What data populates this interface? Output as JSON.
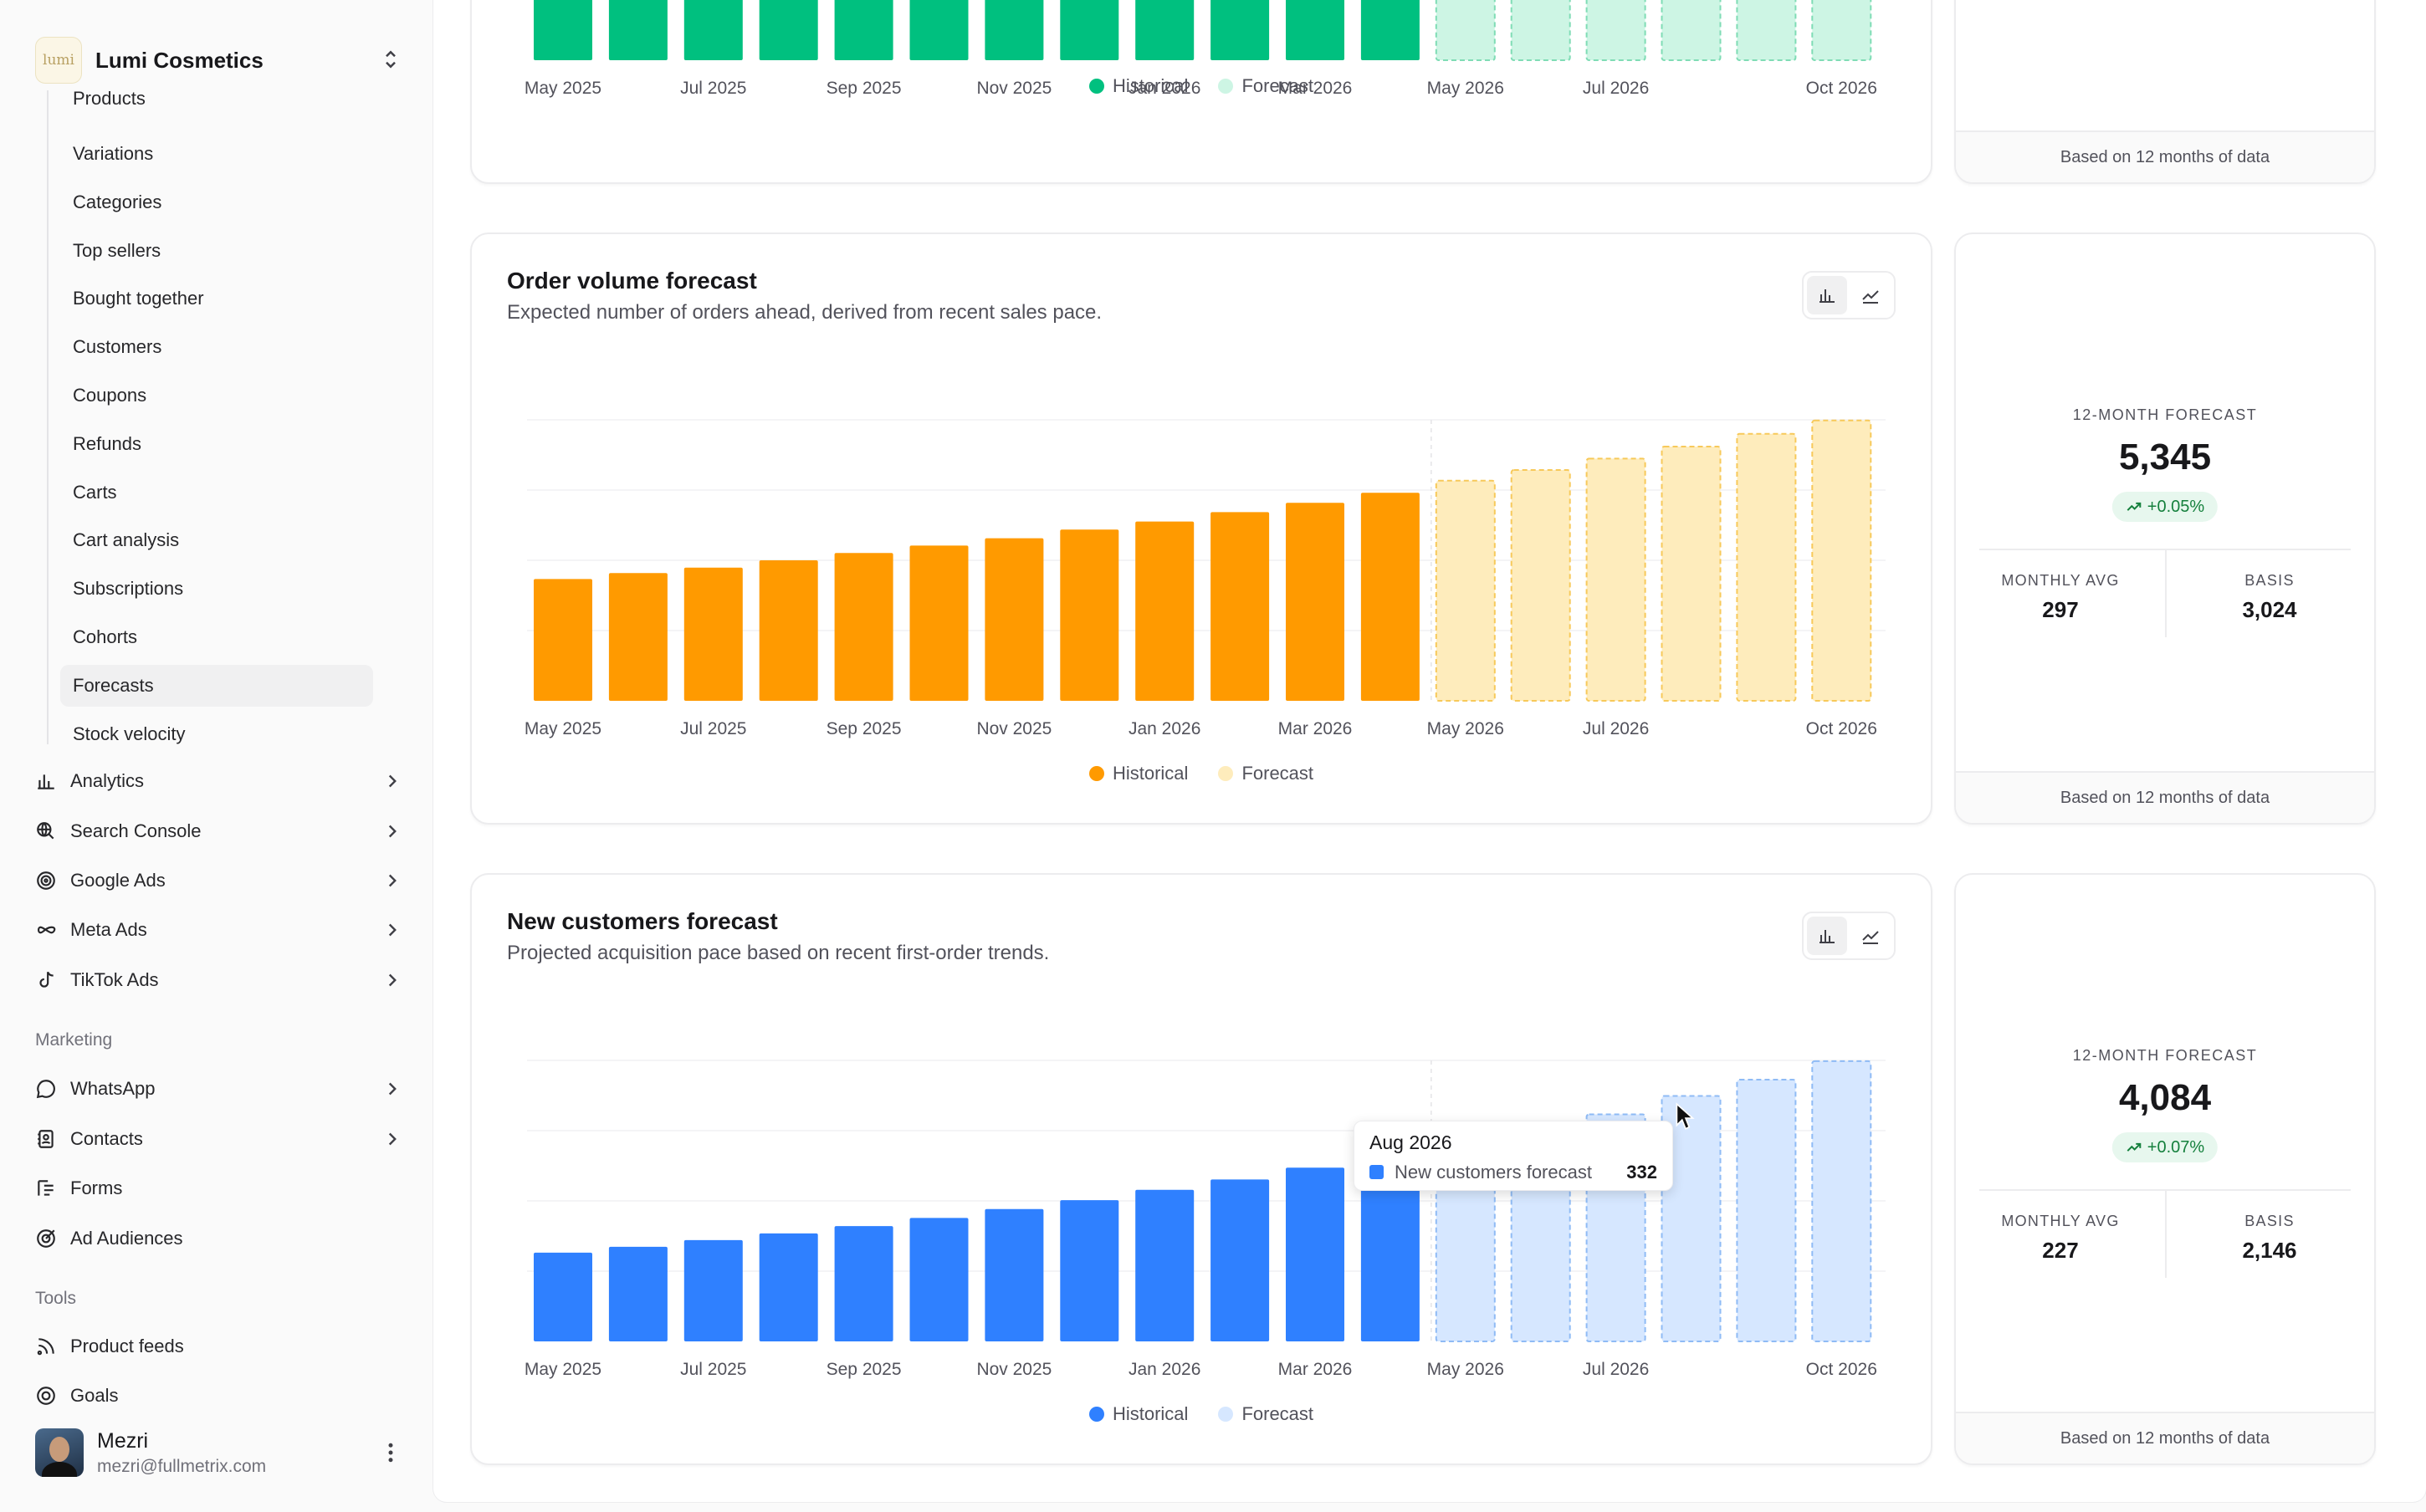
{
  "brand": {
    "name": "Lumi Cosmetics",
    "logo_text": "lumi"
  },
  "sidebar": {
    "sub_items": [
      {
        "label": "Products",
        "top": 0
      },
      {
        "label": "Variations"
      },
      {
        "label": "Categories"
      },
      {
        "label": "Top sellers"
      },
      {
        "label": "Bought together"
      },
      {
        "label": "Customers"
      },
      {
        "label": "Coupons"
      },
      {
        "label": "Refunds"
      },
      {
        "label": "Carts"
      },
      {
        "label": "Cart analysis"
      },
      {
        "label": "Subscriptions"
      },
      {
        "label": "Cohorts"
      },
      {
        "label": "Forecasts",
        "active": true
      },
      {
        "label": "Stock velocity"
      }
    ],
    "nav_items": [
      {
        "label": "Analytics",
        "icon": "bar-chart-icon",
        "chevron": true
      },
      {
        "label": "Search Console",
        "icon": "globe-search-icon",
        "chevron": true
      },
      {
        "label": "Google Ads",
        "icon": "target-icon",
        "chevron": true
      },
      {
        "label": "Meta Ads",
        "icon": "infinity-icon",
        "chevron": true
      },
      {
        "label": "TikTok Ads",
        "icon": "tiktok-icon",
        "chevron": true
      }
    ],
    "marketing_label": "Marketing",
    "marketing_items": [
      {
        "label": "WhatsApp",
        "icon": "chat-bubble-icon",
        "chevron": true
      },
      {
        "label": "Contacts",
        "icon": "contact-book-icon",
        "chevron": true
      },
      {
        "label": "Forms",
        "icon": "form-icon",
        "chevron": false
      },
      {
        "label": "Ad Audiences",
        "icon": "audience-target-icon",
        "chevron": false
      }
    ],
    "tools_label": "Tools",
    "tools_items": [
      {
        "label": "Product feeds",
        "icon": "rss-icon"
      },
      {
        "label": "Goals",
        "icon": "goal-icon"
      }
    ]
  },
  "user": {
    "name": "Mezri",
    "email": "mezri@fullmetrix.com"
  },
  "cards": [
    {
      "title": "",
      "subtitle": "",
      "stat": {
        "label": "",
        "value": "",
        "badge": "",
        "monthly_avg_label": "",
        "monthly_avg": "",
        "basis_label": "",
        "basis": "",
        "footer": "Based on 12 months of data"
      }
    },
    {
      "title": "Order volume forecast",
      "subtitle": "Expected number of orders ahead, derived from recent sales pace.",
      "stat": {
        "label": "12-MONTH FORECAST",
        "value": "5,345",
        "badge": "+0.05%",
        "monthly_avg_label": "MONTHLY AVG",
        "monthly_avg": "297",
        "basis_label": "BASIS",
        "basis": "3,024",
        "footer": "Based on 12 months of data"
      }
    },
    {
      "title": "New customers forecast",
      "subtitle": "Projected acquisition pace based on recent first-order trends.",
      "stat": {
        "label": "12-MONTH FORECAST",
        "value": "4,084",
        "badge": "+0.07%",
        "monthly_avg_label": "MONTHLY AVG",
        "monthly_avg": "227",
        "basis_label": "BASIS",
        "basis": "2,146",
        "footer": "Based on 12 months of data"
      }
    }
  ],
  "legend": {
    "historical": "Historical",
    "forecast": "Forecast"
  },
  "tooltip": {
    "title": "Aug 2026",
    "label": "New customers forecast",
    "value": "332"
  },
  "colors": {
    "green_hist": "#00c07f",
    "green_fc": "#cdf5e4",
    "green_fc_stroke": "#7fdcb5",
    "orange_hist": "#ff9a00",
    "orange_fc": "#feecbc",
    "orange_fc_stroke": "#f7c95a",
    "blue_hist": "#2f80ff",
    "blue_fc": "#d6e7ff",
    "blue_fc_stroke": "#8fbbf5",
    "badge_green": "#15803d"
  },
  "chart_data": [
    {
      "type": "bar",
      "title": "",
      "categories": [
        "May 2025",
        "Jun 2025",
        "Jul 2025",
        "Aug 2025",
        "Sep 2025",
        "Oct 2025",
        "Nov 2025",
        "Dec 2025",
        "Jan 2026",
        "Feb 2026",
        "Mar 2026",
        "Apr 2026",
        "May 2026",
        "Jun 2026",
        "Jul 2026",
        "Aug 2026",
        "Sep 2026",
        "Oct 2026"
      ],
      "tick_labels": [
        "May 2025",
        "Jul 2025",
        "Sep 2025",
        "Nov 2025",
        "Jan 2026",
        "Mar 2026",
        "May 2026",
        "Jul 2026",
        "Oct 2026"
      ],
      "series": [
        {
          "name": "Historical",
          "values": [
            1,
            1,
            1,
            1,
            1,
            1,
            1,
            1,
            1,
            1,
            1,
            1,
            null,
            null,
            null,
            null,
            null,
            null
          ]
        },
        {
          "name": "Forecast",
          "values": [
            null,
            null,
            null,
            null,
            null,
            null,
            null,
            null,
            null,
            null,
            null,
            null,
            1,
            1,
            1,
            1,
            1,
            1
          ]
        }
      ]
    },
    {
      "type": "bar",
      "title": "Order volume forecast",
      "categories": [
        "May 2025",
        "Jun 2025",
        "Jul 2025",
        "Aug 2025",
        "Sep 2025",
        "Oct 2025",
        "Nov 2025",
        "Dec 2025",
        "Jan 2026",
        "Feb 2026",
        "Mar 2026",
        "Apr 2026",
        "May 2026",
        "Jun 2026",
        "Jul 2026",
        "Aug 2026",
        "Sep 2026",
        "Oct 2026"
      ],
      "tick_labels": [
        "May 2025",
        "Jul 2025",
        "Sep 2025",
        "Nov 2025",
        "Jan 2026",
        "Mar 2026",
        "May 2026",
        "Jul 2026",
        "Oct 2026"
      ],
      "ylim": [
        0,
        420
      ],
      "series": [
        {
          "name": "Historical",
          "values": [
            182,
            191,
            199,
            210,
            221,
            232,
            243,
            256,
            268,
            282,
            296,
            311,
            null,
            null,
            null,
            null,
            null,
            null
          ]
        },
        {
          "name": "Forecast",
          "values": [
            null,
            null,
            null,
            null,
            null,
            null,
            null,
            null,
            null,
            null,
            null,
            null,
            329,
            345,
            362,
            380,
            399,
            419
          ]
        }
      ]
    },
    {
      "type": "bar",
      "title": "New customers forecast",
      "categories": [
        "May 2025",
        "Jun 2025",
        "Jul 2025",
        "Aug 2025",
        "Sep 2025",
        "Oct 2025",
        "Nov 2025",
        "Dec 2025",
        "Jan 2026",
        "Feb 2026",
        "Mar 2026",
        "Apr 2026",
        "May 2026",
        "Jun 2026",
        "Jul 2026",
        "Aug 2026",
        "Sep 2026",
        "Oct 2026"
      ],
      "tick_labels": [
        "May 2025",
        "Jul 2025",
        "Sep 2025",
        "Nov 2025",
        "Jan 2026",
        "Mar 2026",
        "May 2026",
        "Jul 2026",
        "Oct 2026"
      ],
      "ylim": [
        0,
        380
      ],
      "series": [
        {
          "name": "Historical",
          "values": [
            120,
            128,
            137,
            146,
            156,
            167,
            179,
            191,
            205,
            219,
            235,
            251,
            null,
            null,
            null,
            null,
            null,
            null
          ]
        },
        {
          "name": "Forecast",
          "values": [
            null,
            null,
            null,
            null,
            null,
            null,
            null,
            null,
            null,
            null,
            null,
            null,
            268,
            287,
            307,
            332,
            354,
            379
          ]
        }
      ]
    }
  ]
}
